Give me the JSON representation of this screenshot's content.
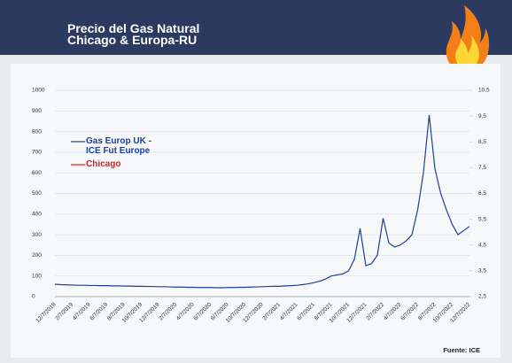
{
  "chart_data": {
    "type": "line",
    "title": "Precio del Gas Natural",
    "subtitle": "Chicago  & Europa-RU",
    "source": "Fuente: ICE",
    "categories": [
      "12/7/2018",
      null,
      null,
      "2/7/2019",
      null,
      null,
      "4/7/2019",
      null,
      null,
      "6/7/2019",
      null,
      null,
      "8/7/2019",
      null,
      null,
      "10/7/2019",
      null,
      null,
      "12/7/2019",
      null,
      null,
      "2/7/2020",
      null,
      null,
      "4/7/2020",
      null,
      null,
      "6/7/2020",
      null,
      null,
      "8/7/2020",
      null,
      null,
      "10/7/2020",
      null,
      null,
      "12/7/2020",
      null,
      null,
      "2/7/2021",
      null,
      null,
      "4/7/2021",
      null,
      null,
      "6/7/2021",
      null,
      null,
      "8/7/2021",
      null,
      null,
      "10/7/2021",
      null,
      null,
      "12/7/2021",
      null,
      null,
      "2/7/2022",
      null,
      null,
      "4/7/2022",
      null,
      null,
      "6/7/2022",
      null,
      null,
      "8/7/2022",
      null,
      null,
      "10/7/2022",
      null,
      null,
      "12/7/2022"
    ],
    "series": [
      {
        "name": "Gas Europ UK - ICE Fut Europe",
        "color": "#1f3f9a",
        "values": [
          60,
          58,
          57,
          56,
          55,
          55,
          54,
          54,
          53,
          53,
          52,
          52,
          51,
          51,
          50,
          50,
          49,
          49,
          48,
          48,
          47,
          46,
          46,
          45,
          45,
          44,
          44,
          44,
          43,
          43,
          44,
          44,
          45,
          45,
          46,
          47,
          48,
          49,
          50,
          50,
          52,
          53,
          55,
          58,
          62,
          68,
          75,
          85,
          100,
          105,
          110,
          125,
          180,
          330,
          150,
          160,
          200,
          380,
          260,
          240,
          250,
          270,
          300,
          420,
          600,
          880,
          620,
          500,
          420,
          350,
          300,
          320,
          340
        ]
      },
      {
        "name": "Chicago",
        "color": "#e02020",
        "axis": "y2",
        "values": [
          null,
          null,
          null,
          null,
          null,
          null,
          null,
          null,
          null,
          null,
          null,
          null,
          null,
          null,
          null,
          null,
          null,
          null,
          null,
          null,
          null,
          null,
          null,
          null,
          null,
          null,
          null,
          null,
          null,
          null,
          null,
          null,
          null,
          null,
          null,
          null,
          null,
          null,
          null,
          null,
          null,
          null,
          null,
          null,
          null,
          null,
          null,
          null,
          null,
          null,
          null,
          null,
          null,
          null,
          null,
          null,
          null,
          null,
          null,
          null,
          null,
          null,
          null,
          null,
          null,
          null,
          null,
          null,
          null,
          null,
          null,
          null,
          null
        ]
      }
    ],
    "ylim": [
      0,
      1000
    ],
    "yticks": [
      0,
      100,
      200,
      300,
      400,
      500,
      600,
      700,
      800,
      900,
      1000
    ],
    "y2lim": [
      2.5,
      10.5
    ],
    "y2ticks": [
      {
        "value": 2.5,
        "label": "2,5"
      },
      {
        "value": 3.5,
        "label": "3,5"
      },
      {
        "value": 4.5,
        "label": "4,5"
      },
      {
        "value": 5.5,
        "label": "5,5"
      },
      {
        "value": 6.5,
        "label": "6,5"
      },
      {
        "value": 7.5,
        "label": "7,5"
      },
      {
        "value": 8.5,
        "label": "8,5"
      },
      {
        "value": 9.5,
        "label": "9,5"
      },
      {
        "value": 10.5,
        "label": "10,5"
      }
    ],
    "grid": true
  }
}
